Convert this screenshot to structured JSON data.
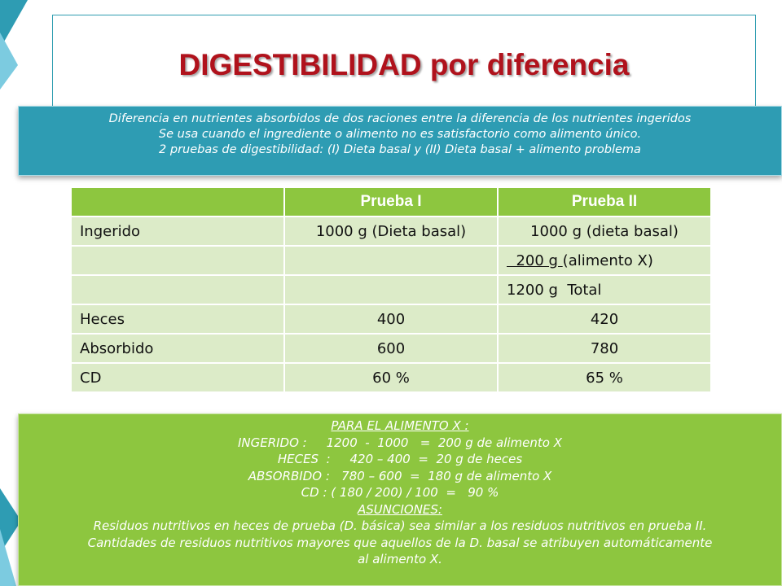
{
  "title": "DIGESTIBILIDAD por diferencia",
  "intro_lines": [
    "Diferencia en nutrientes absorbidos de dos raciones entre la diferencia de los nutrientes ingeridos",
    "Se usa cuando el ingrediente o alimento no es satisfactorio como alimento único.",
    "2 pruebas de digestibilidad: (I) Dieta basal y (II) Dieta basal + alimento problema"
  ],
  "table": {
    "headers": [
      "",
      "Prueba I",
      "Prueba II"
    ],
    "rows": [
      [
        "Ingerido",
        "1000 g (Dieta basal)",
        "1000 g (dieta basal)"
      ],
      [
        "",
        "",
        "  200 g (alimento X)"
      ],
      [
        "",
        "",
        "1200 g  Total"
      ],
      [
        "Heces",
        "400",
        "420"
      ],
      [
        "Absorbido",
        "600",
        "780"
      ],
      [
        "CD",
        "60 %",
        "65 %"
      ]
    ],
    "row2_underlined": "  200 g ",
    "row2_rest": "(alimento X)"
  },
  "notes": {
    "heading": "PARA EL ALIMENTO X :",
    "lines": [
      "INGERIDO :     1200  -  1000   =  200 g de alimento X",
      "HECES  :     420 – 400  =  20 g de heces",
      "ABSORBIDO :   780 – 600  =  180 g de alimento X",
      "CD : ( 180 / 200) / 100  =   90 %"
    ],
    "assumptions_heading": "ASUNCIONES:",
    "assumptions": [
      "Residuos nutritivos en heces de prueba (D. básica) sea similar a los residuos nutritivos en prueba II.",
      "Cantidades de residuos nutritivos mayores que aquellos de la D. basal se atribuyen automáticamente",
      "al alimento X."
    ]
  },
  "colors": {
    "title": "#b0121c",
    "blue_panel": "#2e9cb3",
    "green_panel": "#8dc63f",
    "table_header": "#8dc63f",
    "table_cell": "#dcebc8"
  }
}
